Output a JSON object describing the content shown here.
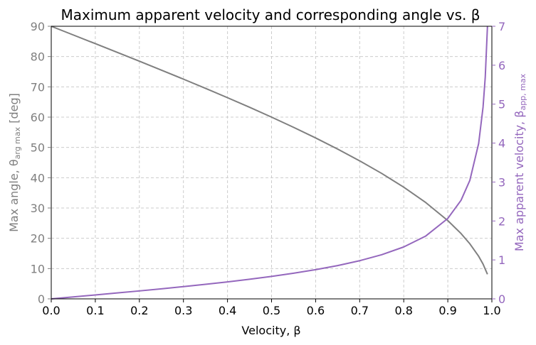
{
  "chart_data": {
    "type": "line",
    "title": "Maximum apparent velocity and corresponding angle vs. β",
    "xlabel": "Velocity, β",
    "ylabel_left": "Max angle, θ",
    "ylabel_left_sub": "arg max",
    "ylabel_left_unit": " [deg]",
    "ylabel_right": "Max apparent velocity, β",
    "ylabel_right_sub": "app, max",
    "xlim": [
      0,
      1
    ],
    "ylim_left": [
      0,
      90
    ],
    "ylim_right": [
      0,
      7
    ],
    "x_ticks": [
      "0.0",
      "0.1",
      "0.2",
      "0.3",
      "0.4",
      "0.5",
      "0.6",
      "0.7",
      "0.8",
      "0.9",
      "1.0"
    ],
    "y_left_ticks": [
      "0",
      "10",
      "20",
      "30",
      "40",
      "50",
      "60",
      "70",
      "80",
      "90"
    ],
    "y_right_ticks": [
      "0",
      "1",
      "2",
      "3",
      "4",
      "5",
      "6",
      "7"
    ],
    "grid": true,
    "series": [
      {
        "name": "Max angle θ_arg max (deg)",
        "axis": "left",
        "color": "#7f7f7f",
        "x": [
          0.0,
          0.05,
          0.1,
          0.15,
          0.2,
          0.25,
          0.3,
          0.35,
          0.4,
          0.45,
          0.5,
          0.55,
          0.6,
          0.65,
          0.7,
          0.75,
          0.8,
          0.85,
          0.9,
          0.93,
          0.95,
          0.97,
          0.98,
          0.99
        ],
        "values": [
          90.0,
          87.13,
          84.26,
          81.37,
          78.46,
          75.52,
          72.54,
          69.51,
          66.42,
          63.26,
          60.0,
          56.63,
          53.13,
          49.46,
          45.57,
          41.41,
          36.87,
          31.79,
          25.84,
          21.57,
          18.19,
          14.07,
          11.48,
          8.11
        ]
      },
      {
        "name": "Max apparent velocity β_app,max",
        "axis": "right",
        "color": "#9467bd",
        "x": [
          0.0,
          0.05,
          0.1,
          0.15,
          0.2,
          0.25,
          0.3,
          0.35,
          0.4,
          0.45,
          0.5,
          0.55,
          0.6,
          0.65,
          0.7,
          0.75,
          0.8,
          0.85,
          0.9,
          0.93,
          0.95,
          0.97,
          0.98,
          0.985,
          0.99
        ],
        "values": [
          0.0,
          0.05,
          0.101,
          0.152,
          0.204,
          0.258,
          0.314,
          0.374,
          0.436,
          0.504,
          0.577,
          0.659,
          0.75,
          0.855,
          0.98,
          1.134,
          1.333,
          1.614,
          2.065,
          2.531,
          3.042,
          3.99,
          4.925,
          5.698,
          7.018
        ]
      }
    ]
  }
}
